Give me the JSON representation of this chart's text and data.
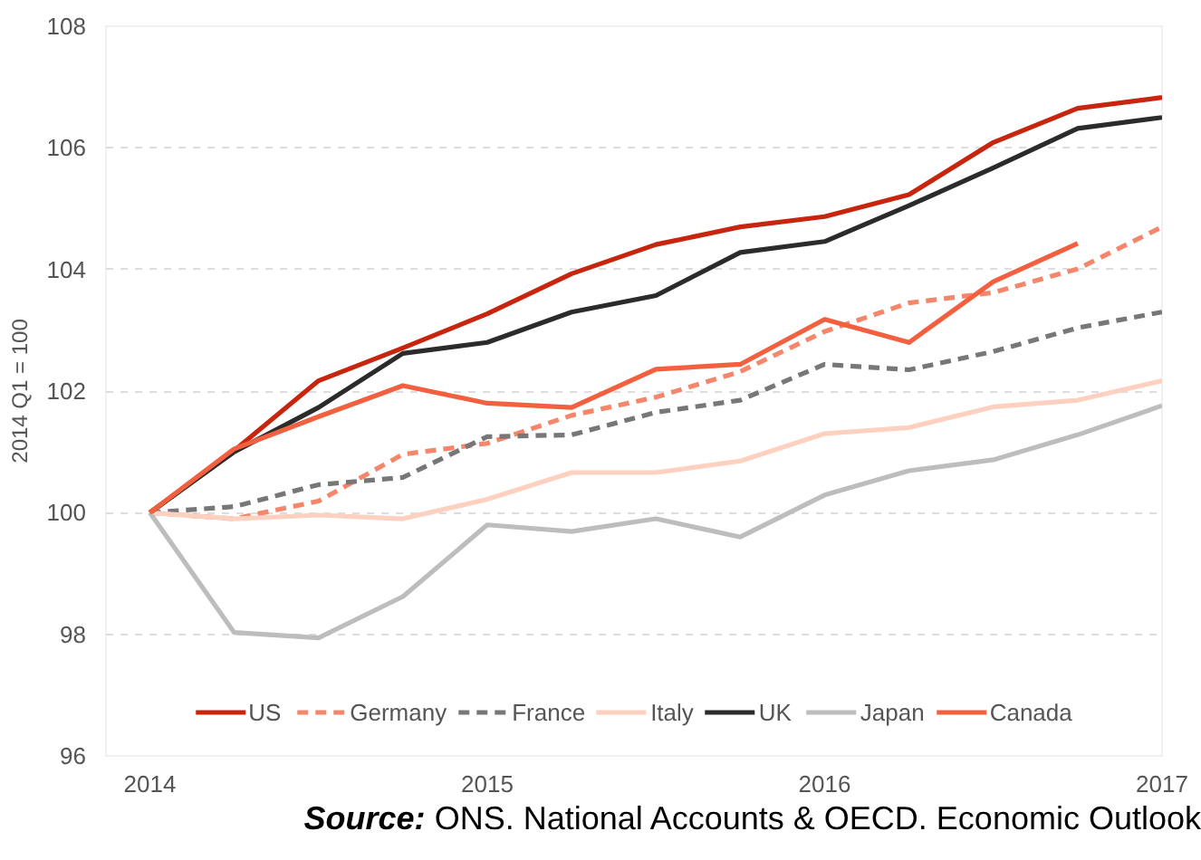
{
  "chart_data": {
    "type": "line",
    "ylabel": "2014 Q1 = 100",
    "x": [
      2014,
      2014.25,
      2014.5,
      2014.75,
      2015,
      2015.25,
      2015.5,
      2015.75,
      2016,
      2016.25,
      2016.5,
      2016.75,
      2017
    ],
    "xlim": [
      2013.87,
      2017
    ],
    "xticks": [
      2014,
      2015,
      2016,
      2017
    ],
    "ylim": [
      96,
      108
    ],
    "yticks": [
      96,
      98,
      100,
      102,
      104,
      106,
      108
    ],
    "grid": "y",
    "legend": "bottom",
    "marker": "none",
    "series": [
      {
        "name": "US",
        "color": "#c8250e",
        "line_style": "solid",
        "values": [
          100,
          101.02,
          102.17,
          102.71,
          103.27,
          103.93,
          104.41,
          104.7,
          104.87,
          105.23,
          106.09,
          106.65,
          106.83
        ]
      },
      {
        "name": "Germany",
        "color": "#f4876b",
        "line_style": "dashed",
        "values": [
          100,
          99.9,
          100.19,
          100.96,
          101.14,
          101.6,
          101.9,
          102.32,
          102.98,
          103.45,
          103.62,
          104.01,
          104.7
        ]
      },
      {
        "name": "France",
        "color": "#777777",
        "line_style": "dashed",
        "values": [
          100,
          100.1,
          100.46,
          100.58,
          101.25,
          101.28,
          101.65,
          101.85,
          102.44,
          102.35,
          102.65,
          103.04,
          103.3
        ]
      },
      {
        "name": "Italy",
        "color": "#fdd0c0",
        "line_style": "solid",
        "values": [
          100,
          99.9,
          99.96,
          99.9,
          100.22,
          100.66,
          100.66,
          100.85,
          101.3,
          101.4,
          101.74,
          101.85,
          102.17
        ]
      },
      {
        "name": "UK",
        "color": "#2b2b2b",
        "line_style": "solid",
        "values": [
          100,
          101.0,
          101.73,
          102.62,
          102.8,
          103.3,
          103.57,
          104.28,
          104.46,
          105.05,
          105.67,
          106.32,
          106.5
        ]
      },
      {
        "name": "Japan",
        "color": "#bdbdbd",
        "line_style": "solid",
        "values": [
          100,
          98.03,
          97.94,
          98.62,
          99.8,
          99.69,
          99.9,
          99.6,
          100.29,
          100.69,
          100.87,
          101.28,
          101.76
        ]
      },
      {
        "name": "Canada",
        "color": "#f2603f",
        "line_style": "solid",
        "values": [
          100,
          101.05,
          101.58,
          102.09,
          101.8,
          101.73,
          102.36,
          102.44,
          103.18,
          102.8,
          103.8,
          104.43,
          null
        ]
      }
    ],
    "annotations": [
      "Source: ONS. National Accounts & OECD. Economic Outlook"
    ]
  }
}
